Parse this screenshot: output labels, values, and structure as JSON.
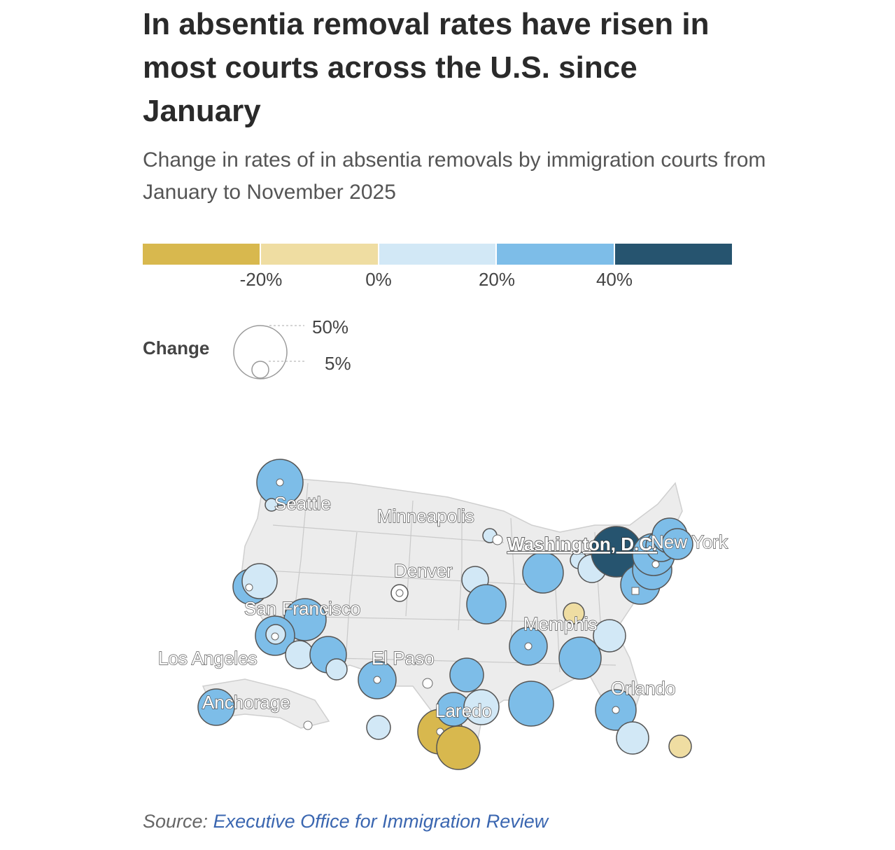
{
  "title": "In absentia removal rates have risen in most courts across the U.S. since January",
  "subtitle": "Change in rates of in absentia removals by immigration courts from January to November 2025",
  "color_legend": {
    "colors": [
      "#d8b84e",
      "#efdda2",
      "#d2e8f6",
      "#7dbde8",
      "#26546f"
    ],
    "ticks": [
      "-20%",
      "0%",
      "20%",
      "40%"
    ]
  },
  "size_legend": {
    "label": "Change",
    "large": "50%",
    "small": "5%"
  },
  "cities": [
    {
      "name": "Seattle"
    },
    {
      "name": "Minneapolis"
    },
    {
      "name": "Washington, D.C."
    },
    {
      "name": "New York"
    },
    {
      "name": "Denver"
    },
    {
      "name": "San Francisco"
    },
    {
      "name": "Memphis"
    },
    {
      "name": "Los Angeles"
    },
    {
      "name": "El Paso"
    },
    {
      "name": "Orlando"
    },
    {
      "name": "Laredo"
    },
    {
      "name": "Anchorage"
    }
  ],
  "source": {
    "prefix": "Source: ",
    "link": "Executive Office for Immigration Review"
  }
}
